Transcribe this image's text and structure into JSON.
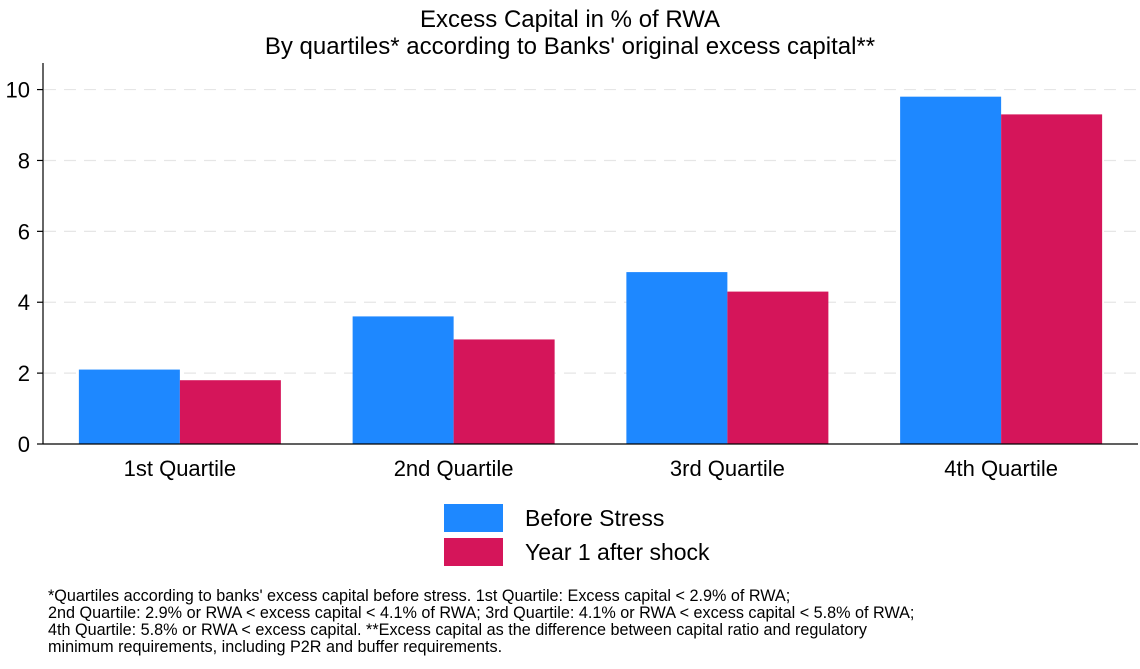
{
  "chart_data": {
    "type": "bar",
    "title": "Excess Capital in % of RWA",
    "subtitle": "By quartiles* according to Banks' original excess capital**",
    "categories": [
      "1st Quartile",
      "2nd Quartile",
      "3rd Quartile",
      "4th Quartile"
    ],
    "series": [
      {
        "name": "Before Stress",
        "values": [
          2.1,
          3.6,
          4.85,
          9.8
        ],
        "color": "#1e88ff"
      },
      {
        "name": "Year 1 after shock",
        "values": [
          1.8,
          2.95,
          4.3,
          9.3
        ],
        "color": "#d5155a"
      }
    ],
    "ylim": [
      0,
      10.75
    ],
    "yticks": [
      0,
      2,
      4,
      6,
      8,
      10
    ],
    "xlabel": "",
    "ylabel": "",
    "grid": true,
    "legend": "bottom"
  },
  "notes": [
    "*Quartiles according to banks' excess capital before stress. 1st Quartile: Excess capital < 2.9% of RWA;",
    "2nd Quartile: 2.9% or RWA < excess capital < 4.1% of RWA; 3rd Quartile: 4.1% or RWA < excess capital < 5.8% of RWA;",
    "4th Quartile: 5.8% or RWA < excess capital. **Excess capital as the difference between capital ratio and regulatory",
    "minimum requirements, including P2R and buffer requirements."
  ]
}
